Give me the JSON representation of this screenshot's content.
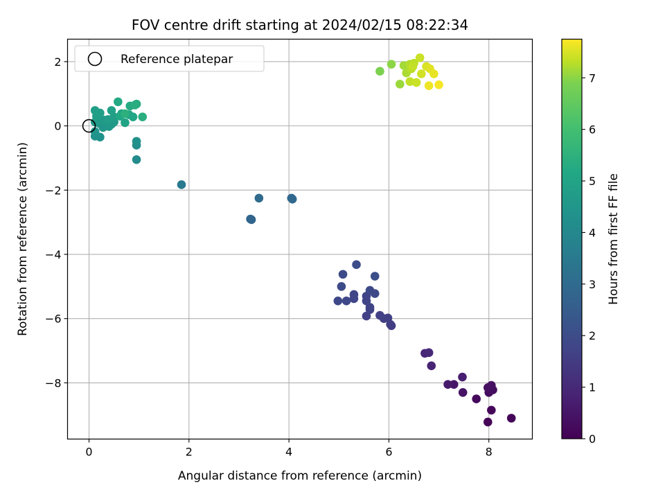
{
  "chart_data": {
    "type": "scatter",
    "title": "FOV centre drift starting at 2024/02/15 08:22:34",
    "xlabel": "Angular distance from reference (arcmin)",
    "ylabel": "Rotation from reference (arcmin)",
    "xlim": [
      -0.43,
      8.87
    ],
    "ylim": [
      -9.75,
      2.7
    ],
    "xticks": [
      0,
      2,
      4,
      6,
      8
    ],
    "yticks": [
      2,
      0,
      -2,
      -4,
      -6,
      -8
    ],
    "xtick_labels": [
      "0",
      "2",
      "4",
      "6",
      "8"
    ],
    "ytick_labels": [
      "2",
      "0",
      "−2",
      "−4",
      "−6",
      "−8"
    ],
    "grid": true,
    "legend": {
      "label": "Reference platepar",
      "placement": "top-left",
      "marker": "hollow circle"
    },
    "reference_point": {
      "x": 0,
      "y": 0
    },
    "colorbar": {
      "label": "Hours from first FF file",
      "colormap": "viridis",
      "range": [
        0,
        7.75
      ],
      "ticks": [
        0,
        1,
        2,
        3,
        4,
        5,
        6,
        7
      ],
      "tick_labels": [
        "0",
        "1",
        "2",
        "3",
        "4",
        "5",
        "6",
        "7"
      ]
    },
    "points": [
      {
        "x": 7.98,
        "y": -9.22,
        "c": 0.05
      },
      {
        "x": 8.45,
        "y": -9.1,
        "c": 0.1
      },
      {
        "x": 8.05,
        "y": -8.85,
        "c": 0.15
      },
      {
        "x": 7.75,
        "y": -8.5,
        "c": 0.2
      },
      {
        "x": 8.0,
        "y": -8.3,
        "c": 0.25
      },
      {
        "x": 8.08,
        "y": -8.22,
        "c": 0.3
      },
      {
        "x": 7.98,
        "y": -8.15,
        "c": 0.35
      },
      {
        "x": 8.05,
        "y": -8.08,
        "c": 0.4
      },
      {
        "x": 7.48,
        "y": -8.3,
        "c": 0.45
      },
      {
        "x": 7.3,
        "y": -8.05,
        "c": 0.5
      },
      {
        "x": 7.18,
        "y": -8.05,
        "c": 0.6
      },
      {
        "x": 7.47,
        "y": -7.82,
        "c": 0.7
      },
      {
        "x": 6.85,
        "y": -7.47,
        "c": 0.85
      },
      {
        "x": 6.72,
        "y": -7.08,
        "c": 0.95
      },
      {
        "x": 6.8,
        "y": -7.06,
        "c": 1.0
      },
      {
        "x": 6.05,
        "y": -6.22,
        "c": 1.5
      },
      {
        "x": 6.03,
        "y": -6.18,
        "c": 1.55
      },
      {
        "x": 5.9,
        "y": -6.0,
        "c": 1.6
      },
      {
        "x": 5.98,
        "y": -5.98,
        "c": 1.6
      },
      {
        "x": 5.82,
        "y": -5.9,
        "c": 1.65
      },
      {
        "x": 5.55,
        "y": -5.92,
        "c": 1.65
      },
      {
        "x": 5.62,
        "y": -5.72,
        "c": 1.7
      },
      {
        "x": 5.62,
        "y": -5.65,
        "c": 1.7
      },
      {
        "x": 5.55,
        "y": -5.45,
        "c": 1.75
      },
      {
        "x": 5.55,
        "y": -5.3,
        "c": 1.75
      },
      {
        "x": 5.3,
        "y": -5.38,
        "c": 1.8
      },
      {
        "x": 5.3,
        "y": -5.25,
        "c": 1.8
      },
      {
        "x": 5.15,
        "y": -5.45,
        "c": 1.85
      },
      {
        "x": 4.98,
        "y": -5.45,
        "c": 1.85
      },
      {
        "x": 5.62,
        "y": -5.12,
        "c": 1.9
      },
      {
        "x": 5.72,
        "y": -5.22,
        "c": 1.9
      },
      {
        "x": 5.05,
        "y": -5.0,
        "c": 1.95
      },
      {
        "x": 5.08,
        "y": -4.62,
        "c": 1.95
      },
      {
        "x": 5.35,
        "y": -4.32,
        "c": 2.0
      },
      {
        "x": 5.72,
        "y": -4.68,
        "c": 2.05
      },
      {
        "x": 3.23,
        "y": -2.9,
        "c": 2.8
      },
      {
        "x": 3.25,
        "y": -2.92,
        "c": 2.8
      },
      {
        "x": 4.05,
        "y": -2.25,
        "c": 2.9
      },
      {
        "x": 4.07,
        "y": -2.28,
        "c": 2.9
      },
      {
        "x": 3.4,
        "y": -2.25,
        "c": 3.0
      },
      {
        "x": 1.85,
        "y": -1.83,
        "c": 3.5
      },
      {
        "x": 0.95,
        "y": -1.05,
        "c": 4.1
      },
      {
        "x": 0.95,
        "y": -0.6,
        "c": 4.2
      },
      {
        "x": 0.95,
        "y": -0.48,
        "c": 4.3
      },
      {
        "x": 0.12,
        "y": -0.32,
        "c": 4.4
      },
      {
        "x": 0.22,
        "y": -0.35,
        "c": 4.4
      },
      {
        "x": 0.12,
        "y": -0.18,
        "c": 4.45
      },
      {
        "x": 0.28,
        "y": -0.05,
        "c": 4.5
      },
      {
        "x": 0.35,
        "y": 0.0,
        "c": 4.5
      },
      {
        "x": 0.4,
        "y": -0.02,
        "c": 4.55
      },
      {
        "x": 0.2,
        "y": 0.08,
        "c": 4.55
      },
      {
        "x": 0.45,
        "y": 0.05,
        "c": 4.6
      },
      {
        "x": 0.5,
        "y": 0.12,
        "c": 4.6
      },
      {
        "x": 0.12,
        "y": 0.12,
        "c": 4.65
      },
      {
        "x": 0.25,
        "y": 0.2,
        "c": 4.7
      },
      {
        "x": 0.3,
        "y": 0.18,
        "c": 4.7
      },
      {
        "x": 0.38,
        "y": 0.2,
        "c": 4.75
      },
      {
        "x": 0.5,
        "y": 0.28,
        "c": 4.8
      },
      {
        "x": 0.15,
        "y": 0.3,
        "c": 4.8
      },
      {
        "x": 0.22,
        "y": 0.4,
        "c": 4.85
      },
      {
        "x": 0.12,
        "y": 0.48,
        "c": 4.85
      },
      {
        "x": 0.45,
        "y": 0.48,
        "c": 4.9
      },
      {
        "x": 0.65,
        "y": 0.38,
        "c": 4.95
      },
      {
        "x": 0.72,
        "y": 0.1,
        "c": 5.0
      },
      {
        "x": 0.8,
        "y": 0.35,
        "c": 5.05
      },
      {
        "x": 0.88,
        "y": 0.28,
        "c": 5.1
      },
      {
        "x": 0.62,
        "y": 0.3,
        "c": 5.15
      },
      {
        "x": 0.58,
        "y": 0.75,
        "c": 5.2
      },
      {
        "x": 0.82,
        "y": 0.62,
        "c": 5.25
      },
      {
        "x": 0.95,
        "y": 0.68,
        "c": 5.3
      },
      {
        "x": 0.92,
        "y": 0.65,
        "c": 5.35
      },
      {
        "x": 1.07,
        "y": 0.28,
        "c": 5.4
      },
      {
        "x": 0.72,
        "y": 0.38,
        "c": 5.45
      },
      {
        "x": 5.82,
        "y": 1.7,
        "c": 6.9
      },
      {
        "x": 6.05,
        "y": 1.92,
        "c": 7.0
      },
      {
        "x": 6.22,
        "y": 1.3,
        "c": 7.1
      },
      {
        "x": 6.3,
        "y": 1.88,
        "c": 7.15
      },
      {
        "x": 6.35,
        "y": 1.65,
        "c": 7.2
      },
      {
        "x": 6.42,
        "y": 1.92,
        "c": 7.25
      },
      {
        "x": 6.45,
        "y": 1.78,
        "c": 7.3
      },
      {
        "x": 6.5,
        "y": 1.95,
        "c": 7.3
      },
      {
        "x": 6.48,
        "y": 1.85,
        "c": 7.35
      },
      {
        "x": 6.42,
        "y": 1.38,
        "c": 7.35
      },
      {
        "x": 6.55,
        "y": 1.35,
        "c": 7.4
      },
      {
        "x": 6.62,
        "y": 2.12,
        "c": 7.4
      },
      {
        "x": 6.65,
        "y": 1.62,
        "c": 7.45
      },
      {
        "x": 6.75,
        "y": 1.85,
        "c": 7.5
      },
      {
        "x": 6.82,
        "y": 1.78,
        "c": 7.55
      },
      {
        "x": 6.9,
        "y": 1.62,
        "c": 7.6
      },
      {
        "x": 6.8,
        "y": 1.25,
        "c": 7.65
      },
      {
        "x": 7.0,
        "y": 1.28,
        "c": 7.7
      }
    ]
  }
}
